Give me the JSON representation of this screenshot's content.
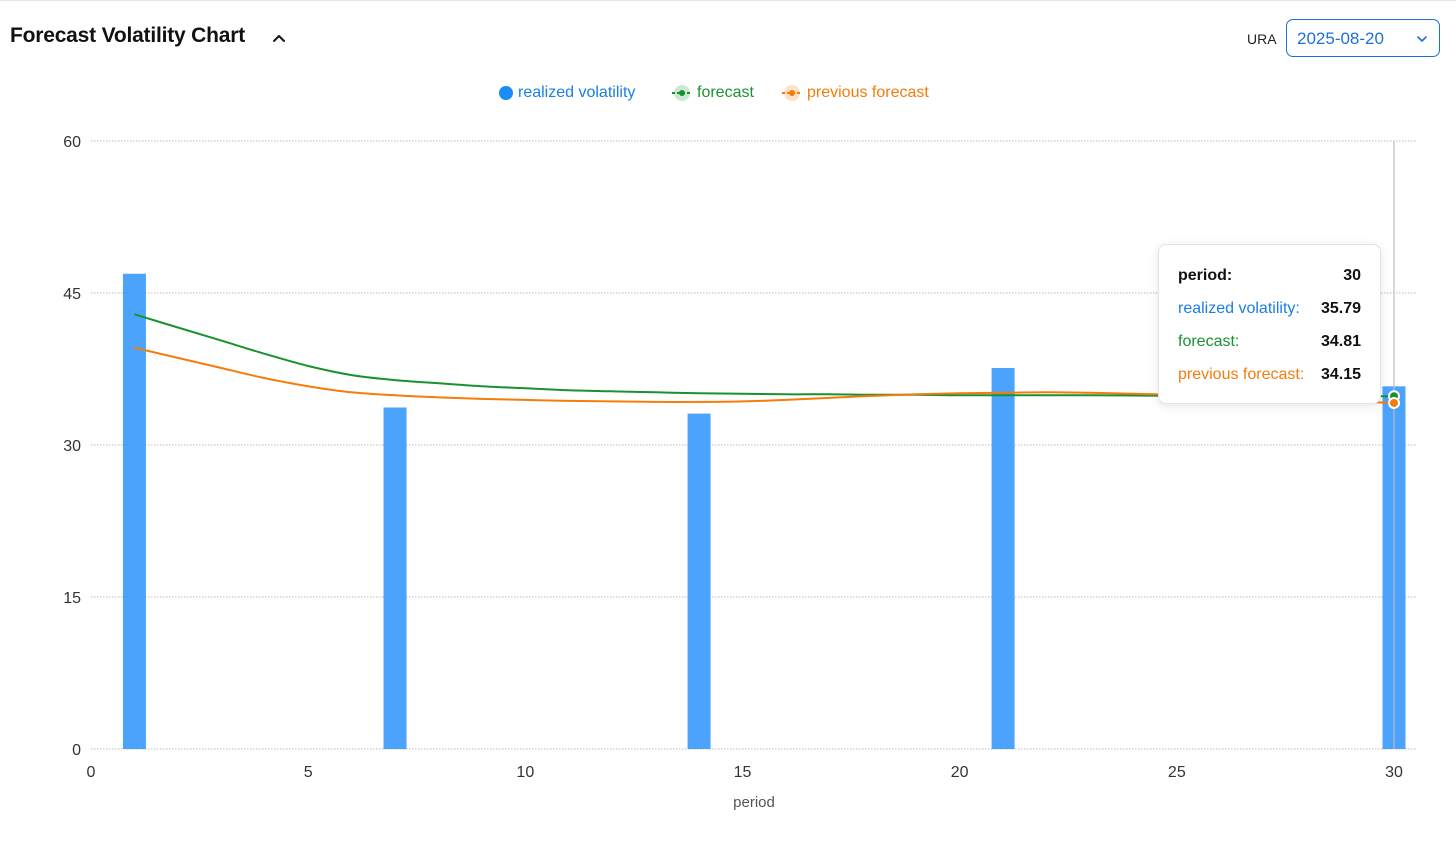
{
  "header": {
    "title": "Forecast Volatility Chart",
    "ticker_label": "URA",
    "date_value": "2025-08-20"
  },
  "colors": {
    "realized": "#3d9bfb",
    "realized_text": "#1a7ee6",
    "forecast": "#1a9131",
    "previous": "#f57c0a",
    "grid": "#b9b9b9"
  },
  "legend": {
    "realized": "realized volatility",
    "forecast": "forecast",
    "previous": "previous forecast"
  },
  "tooltip": {
    "period_label": "period:",
    "period_value": "30",
    "realized_label": "realized volatility:",
    "realized_value": "35.79",
    "forecast_label": "forecast:",
    "forecast_value": "34.81",
    "previous_label": "previous forecast:",
    "previous_value": "34.15"
  },
  "chart_data": {
    "type": "bar",
    "xlabel": "period",
    "ylabel": "",
    "xlim": [
      0,
      30
    ],
    "ylim": [
      0,
      60
    ],
    "xticks": [
      0,
      5,
      10,
      15,
      20,
      25,
      30
    ],
    "yticks": [
      0,
      15,
      30,
      45,
      60
    ],
    "grid": true,
    "legend_position": "top-center",
    "series": [
      {
        "name": "realized volatility",
        "type": "bar",
        "x": [
          1,
          7,
          14,
          21,
          30
        ],
        "values": [
          46.9,
          33.7,
          33.1,
          37.6,
          35.79
        ]
      },
      {
        "name": "forecast",
        "type": "line",
        "x": [
          1,
          2,
          3,
          4,
          5,
          6,
          7,
          8,
          9,
          10,
          11,
          12,
          13,
          14,
          15,
          16,
          17,
          18,
          19,
          20,
          21,
          22,
          23,
          24,
          25,
          26,
          27,
          28,
          29,
          30
        ],
        "values": [
          42.9,
          41.6,
          40.3,
          39.0,
          37.8,
          36.9,
          36.4,
          36.1,
          35.8,
          35.6,
          35.4,
          35.3,
          35.2,
          35.1,
          35.05,
          35.0,
          35.0,
          34.95,
          34.95,
          34.9,
          34.9,
          34.9,
          34.9,
          34.88,
          34.86,
          34.85,
          34.84,
          34.83,
          34.82,
          34.81
        ]
      },
      {
        "name": "previous forecast",
        "type": "line",
        "x": [
          1,
          2,
          3,
          4,
          5,
          6,
          7,
          8,
          9,
          10,
          11,
          12,
          13,
          14,
          15,
          16,
          17,
          18,
          19,
          20,
          21,
          22,
          23,
          24,
          25,
          26,
          27,
          28,
          29,
          30
        ],
        "values": [
          39.6,
          38.6,
          37.6,
          36.6,
          35.8,
          35.2,
          34.9,
          34.7,
          34.55,
          34.45,
          34.35,
          34.3,
          34.25,
          34.25,
          34.3,
          34.45,
          34.65,
          34.85,
          35.0,
          35.1,
          35.15,
          35.2,
          35.15,
          35.05,
          34.95,
          34.8,
          34.6,
          34.45,
          34.3,
          34.15
        ]
      }
    ],
    "hover_x": 30
  }
}
